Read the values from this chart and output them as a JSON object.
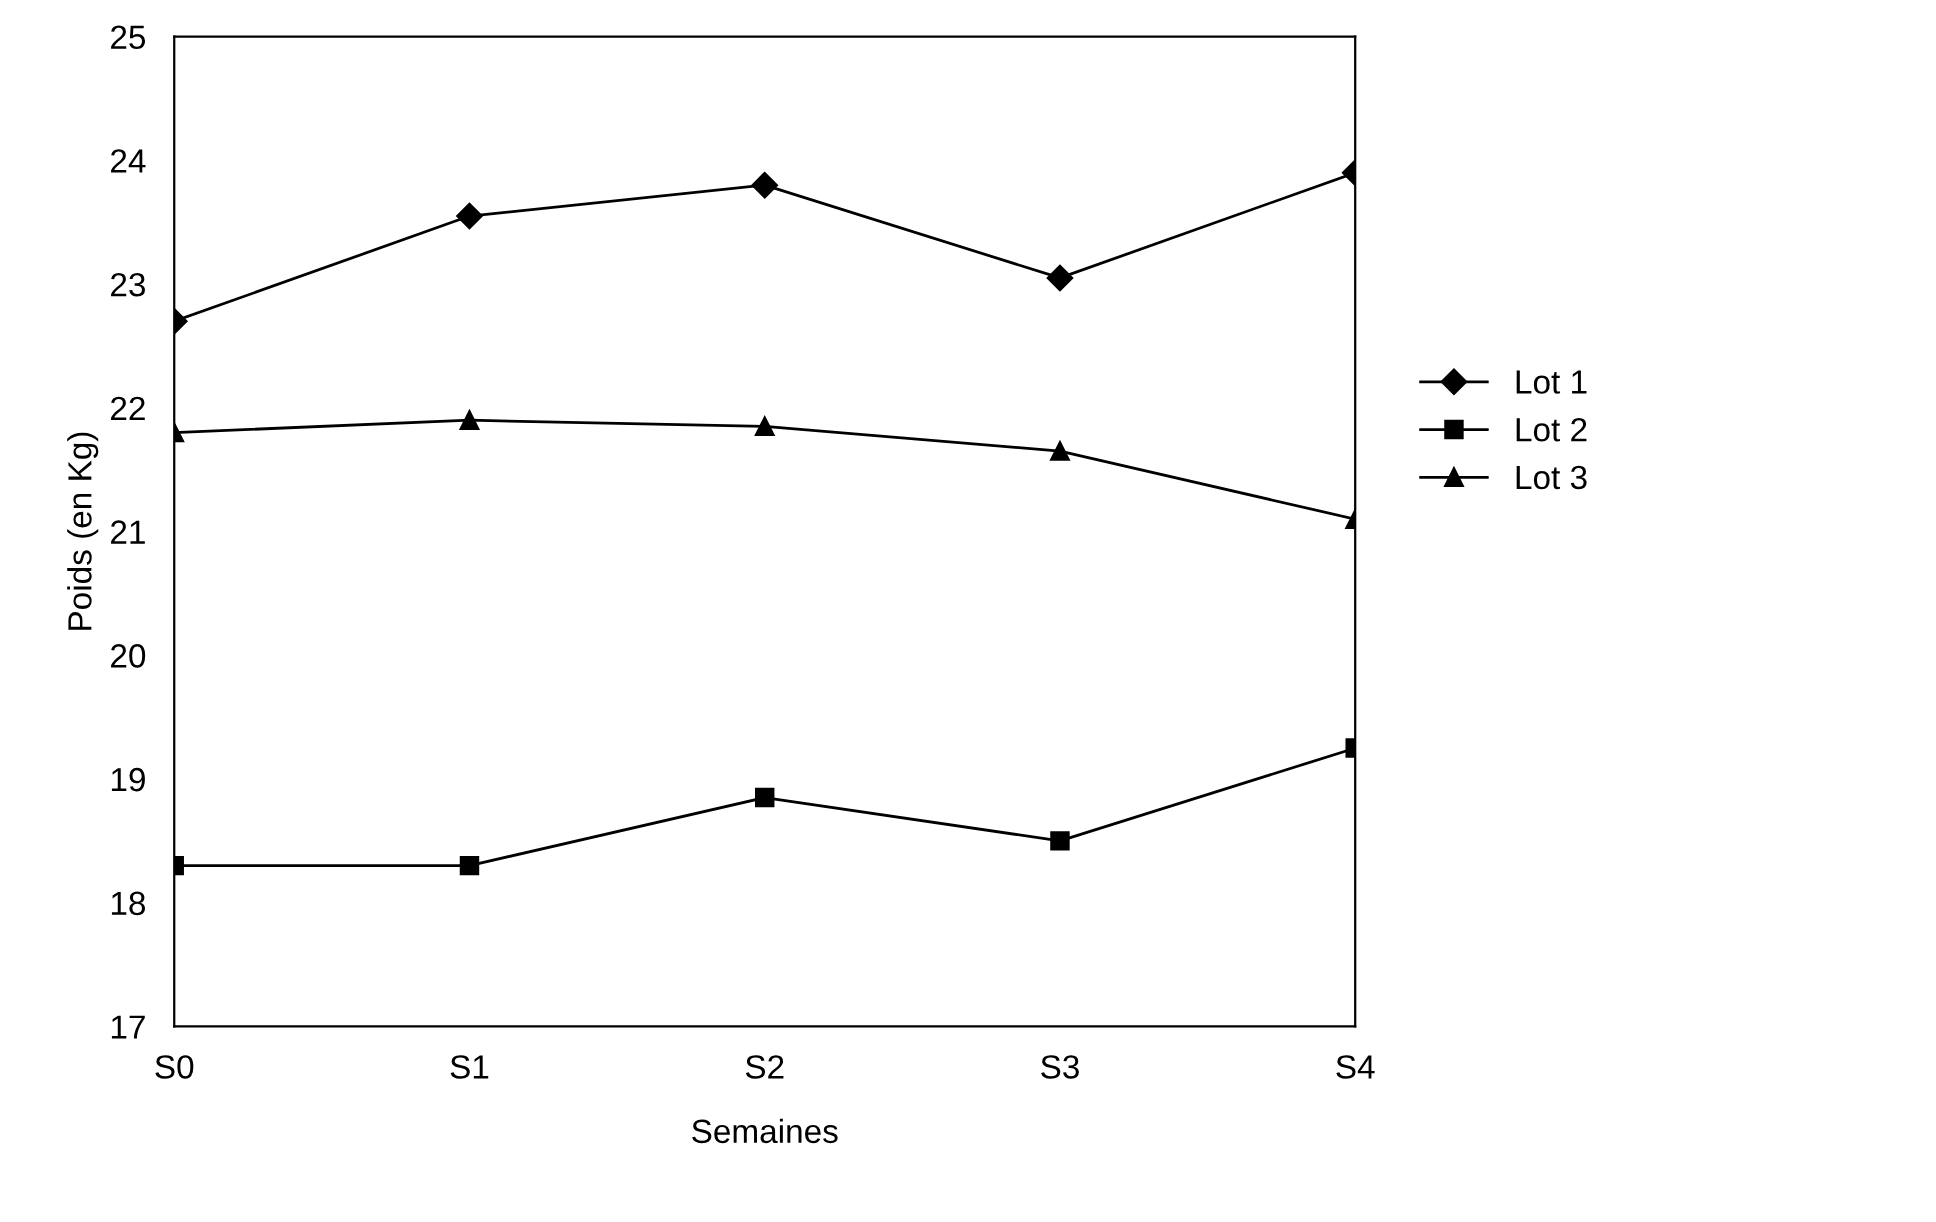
{
  "chart_data": {
    "type": "line",
    "xlabel": "Semaines",
    "ylabel": "Poids (en Kg)",
    "categories": [
      "S0",
      "S1",
      "S2",
      "S3",
      "S4"
    ],
    "ylim": [
      17,
      25
    ],
    "yticks": [
      17,
      18,
      19,
      20,
      21,
      22,
      23,
      24,
      25
    ],
    "grid": false,
    "legend": "right",
    "line_style": "solid",
    "series": [
      {
        "name": "Lot 1",
        "color": "#000000",
        "marker": "diamond",
        "values": [
          22.7,
          23.55,
          23.8,
          23.05,
          23.9
        ]
      },
      {
        "name": "Lot 2",
        "color": "#000000",
        "marker": "square",
        "values": [
          18.3,
          18.3,
          18.85,
          18.5,
          19.25
        ]
      },
      {
        "name": "Lot 3",
        "color": "#000000",
        "marker": "triangle",
        "values": [
          21.8,
          21.9,
          21.85,
          21.65,
          21.1
        ]
      }
    ]
  }
}
